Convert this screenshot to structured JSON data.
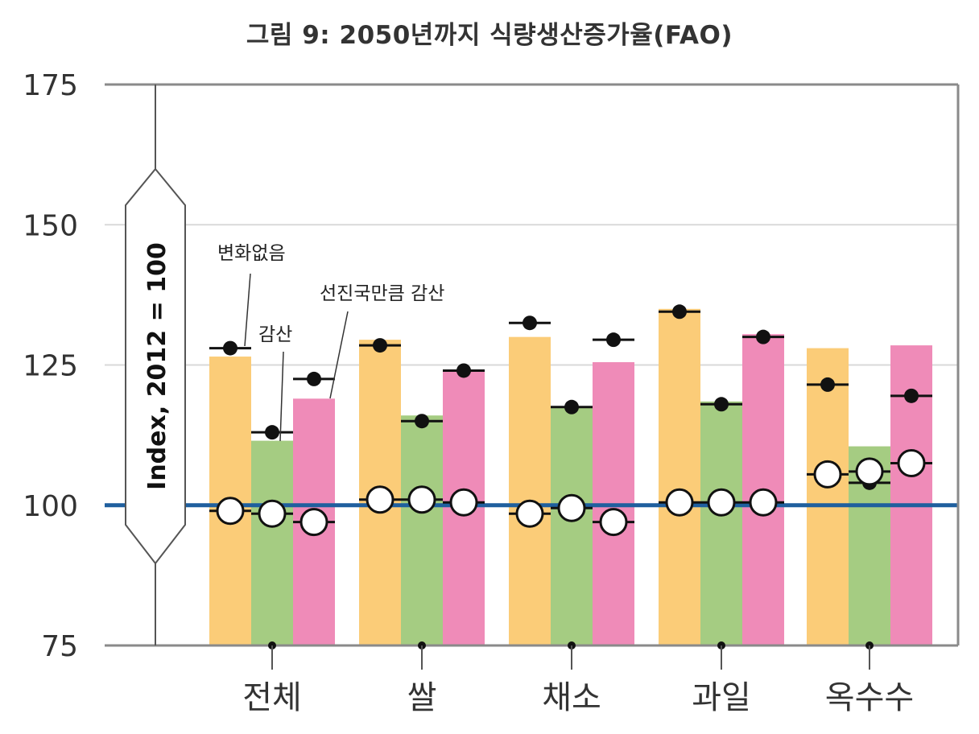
{
  "title": "그림 9: 2050년까지 식량생산증가율(FAO)",
  "chart_data": {
    "type": "bar",
    "title": "그림 9: 2050년까지 식량생산증가율(FAO)",
    "ylabel": "Index, 2012 = 100",
    "xlabel": "",
    "ylim": [
      75,
      175
    ],
    "yticks": [
      75,
      100,
      125,
      150,
      175
    ],
    "grid": true,
    "reference_line": 100,
    "categories": [
      "전체",
      "쌀",
      "채소",
      "과일",
      "옥수수"
    ],
    "series": [
      {
        "name": "변화없음",
        "color": "#fbcc78",
        "values": [
          126.5,
          129.5,
          130,
          135,
          128
        ],
        "dot_values": [
          128,
          128.5,
          132.5,
          134.5,
          121.5
        ],
        "circle_values": [
          99,
          101,
          98.5,
          100.5,
          105.5
        ]
      },
      {
        "name": "감산",
        "color": "#a5cc82",
        "values": [
          111.5,
          116,
          117.5,
          118.5,
          110.5
        ],
        "dot_values": [
          113,
          115,
          117.5,
          118,
          104
        ],
        "circle_values": [
          98.5,
          101,
          99.5,
          100.5,
          106
        ]
      },
      {
        "name": "선진국만큼 감산",
        "color": "#ef8bb8",
        "values": [
          119,
          124,
          125.5,
          130.5,
          128.5
        ],
        "dot_values": [
          122.5,
          124,
          129.5,
          130,
          119.5
        ],
        "circle_values": [
          97,
          100.5,
          97,
          100.5,
          107.5
        ]
      }
    ],
    "annotations": [
      "변화없음",
      "감산",
      "선진국만큼 감산"
    ]
  }
}
